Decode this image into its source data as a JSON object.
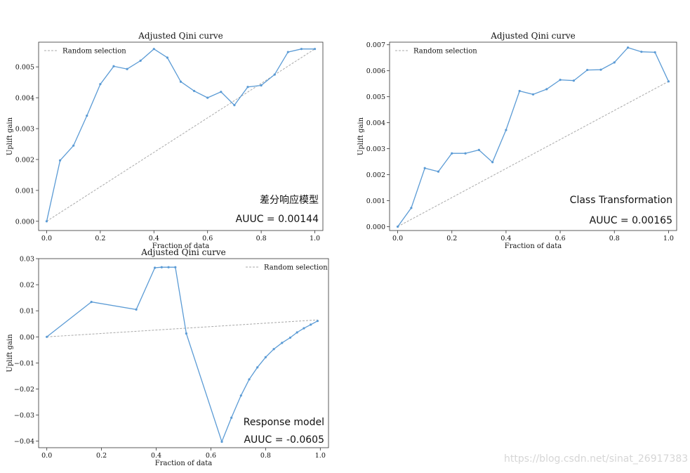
{
  "chart_data": [
    {
      "type": "line",
      "title": "Adjusted Qini curve",
      "xlabel": "Fraction of data",
      "ylabel": "Uplift gain",
      "xlim": [
        -0.03,
        1.03
      ],
      "ylim": [
        -0.0003,
        0.0058
      ],
      "xticks": [
        0.0,
        0.2,
        0.4,
        0.6,
        0.8,
        1.0
      ],
      "xtick_labels": [
        "0.0",
        "0.2",
        "0.4",
        "0.6",
        "0.8",
        "1.0"
      ],
      "yticks": [
        0.0,
        0.001,
        0.002,
        0.003,
        0.004,
        0.005
      ],
      "ytick_labels": [
        "0.000",
        "0.001",
        "0.002",
        "0.003",
        "0.004",
        "0.005"
      ],
      "legend": {
        "label": "Random selection",
        "position": "top-left"
      },
      "annotations": [
        "差分响应模型",
        "AUUC = 0.00144"
      ],
      "series": [
        {
          "x": [
            0,
            0.05,
            0.1,
            0.15,
            0.2,
            0.25,
            0.3,
            0.35,
            0.4,
            0.45,
            0.5,
            0.55,
            0.6,
            0.65,
            0.7,
            0.75,
            0.8,
            0.85,
            0.9,
            0.95,
            1.0
          ],
          "y": [
            0.0,
            0.00197,
            0.00245,
            0.00342,
            0.00444,
            0.00502,
            0.00493,
            0.0052,
            0.00558,
            0.0053,
            0.00452,
            0.00422,
            0.004,
            0.00419,
            0.00376,
            0.00435,
            0.0044,
            0.00475,
            0.00548,
            0.00558,
            0.00558
          ]
        }
      ],
      "random": {
        "x": [
          0,
          1.0
        ],
        "y": [
          0,
          0.00558
        ]
      }
    },
    {
      "type": "line",
      "title": "Adjusted Qini curve",
      "xlabel": "Fraction of data",
      "ylabel": "Uplift gain",
      "xlim": [
        -0.03,
        1.03
      ],
      "ylim": [
        -0.00015,
        0.0071
      ],
      "xticks": [
        0.0,
        0.2,
        0.4,
        0.6,
        0.8,
        1.0
      ],
      "xtick_labels": [
        "0.0",
        "0.2",
        "0.4",
        "0.6",
        "0.8",
        "1.0"
      ],
      "yticks": [
        0.0,
        0.001,
        0.002,
        0.003,
        0.004,
        0.005,
        0.006,
        0.007
      ],
      "ytick_labels": [
        "0.000",
        "0.001",
        "0.002",
        "0.003",
        "0.004",
        "0.005",
        "0.006",
        "0.007"
      ],
      "legend": {
        "label": "Random selection",
        "position": "top-left"
      },
      "annotations": [
        "Class Transformation",
        "AUUC = 0.00165"
      ],
      "series": [
        {
          "x": [
            0,
            0.05,
            0.1,
            0.15,
            0.2,
            0.25,
            0.3,
            0.35,
            0.4,
            0.45,
            0.5,
            0.55,
            0.6,
            0.65,
            0.7,
            0.75,
            0.8,
            0.85,
            0.9,
            0.95,
            1.0
          ],
          "y": [
            0.0,
            0.00072,
            0.00225,
            0.00212,
            0.00282,
            0.00282,
            0.00295,
            0.00248,
            0.00372,
            0.00522,
            0.00509,
            0.00529,
            0.00565,
            0.00562,
            0.00603,
            0.00604,
            0.00632,
            0.00689,
            0.00673,
            0.00671,
            0.00559
          ]
        }
      ],
      "random": {
        "x": [
          0,
          1.0
        ],
        "y": [
          0,
          0.00559
        ]
      }
    },
    {
      "type": "line",
      "title": "Adjusted Qini curve",
      "xlabel": "Fraction of data",
      "ylabel": "Uplift gain",
      "xlim": [
        -0.03,
        1.03
      ],
      "ylim": [
        -0.0425,
        0.03
      ],
      "xticks": [
        0.0,
        0.2,
        0.4,
        0.6,
        0.8,
        1.0
      ],
      "xtick_labels": [
        "0.0",
        "0.2",
        "0.4",
        "0.6",
        "0.8",
        "1.0"
      ],
      "yticks": [
        -0.04,
        -0.03,
        -0.02,
        -0.01,
        0.0,
        0.01,
        0.02,
        0.03
      ],
      "ytick_labels": [
        "−0.04",
        "−0.03",
        "−0.02",
        "−0.01",
        "0.00",
        "0.01",
        "0.02",
        "0.03"
      ],
      "legend": {
        "label": "Random selection",
        "position": "top-right"
      },
      "annotations": [
        "Response model",
        "AUUC =  -0.0605"
      ],
      "series": [
        {
          "x": [
            0,
            0.163,
            0.327,
            0.395,
            0.42,
            0.445,
            0.47,
            0.51,
            0.64,
            0.675,
            0.71,
            0.74,
            0.77,
            0.8,
            0.83,
            0.86,
            0.89,
            0.915,
            0.94,
            0.965,
            0.99
          ],
          "y": [
            0.0,
            0.0134,
            0.0105,
            0.0265,
            0.0267,
            0.0267,
            0.0267,
            0.0013,
            -0.0402,
            -0.031,
            -0.0225,
            -0.0163,
            -0.0117,
            -0.0078,
            -0.0047,
            -0.0023,
            -0.0003,
            0.0017,
            0.0033,
            0.0047,
            0.0061
          ]
        }
      ],
      "random": {
        "x": [
          0,
          0.99
        ],
        "y": [
          0,
          0.0065
        ]
      }
    }
  ],
  "colors": {
    "curve": "#5b9bd5",
    "random": "#a8a8a8",
    "axis": "#333333",
    "text": "#111111"
  },
  "watermark": "https://blog.csdn.net/sinat_26917383"
}
